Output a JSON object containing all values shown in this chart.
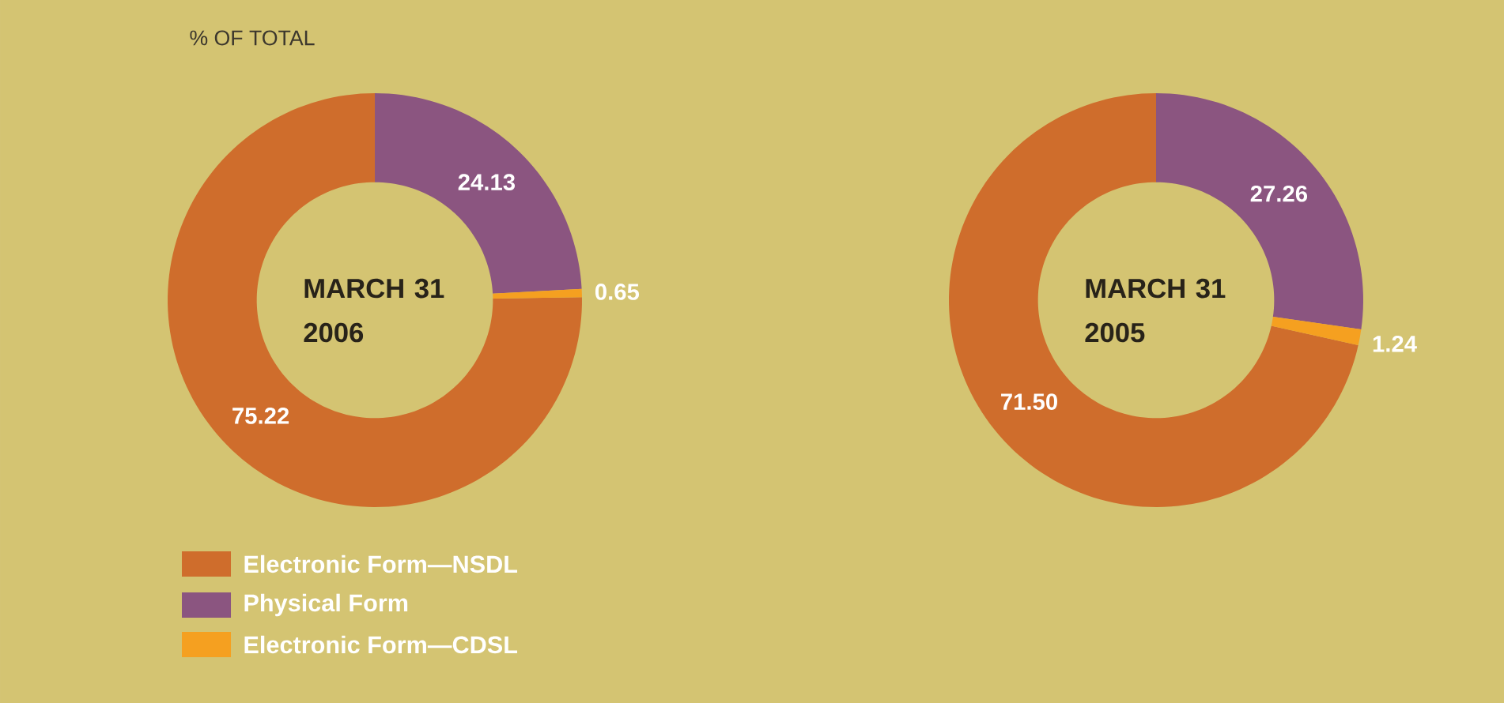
{
  "chart_data": [
    {
      "type": "donut",
      "title": "MARCH 31 2006",
      "annotations": [
        "% OF TOTAL"
      ],
      "categories": [
        "Electronic Form—NSDL",
        "Physical Form",
        "Electronic Form—CDSL"
      ],
      "values": [
        75.22,
        24.13,
        0.65
      ],
      "value_labels": [
        "75.22",
        "24.13",
        "0.65"
      ],
      "colors": [
        "#cf6d2c",
        "#8b5580",
        "#f5a020"
      ],
      "legend": "bottom left"
    },
    {
      "type": "donut",
      "title": "MARCH 31 2005",
      "categories": [
        null,
        null,
        null
      ],
      "values": [
        71.5,
        27.26,
        1.24
      ],
      "value_labels": [
        "71.50",
        "27.26",
        "1.24"
      ],
      "colors": [
        "#cf6d2c",
        "#8b5580",
        "#f5a020"
      ]
    }
  ]
}
